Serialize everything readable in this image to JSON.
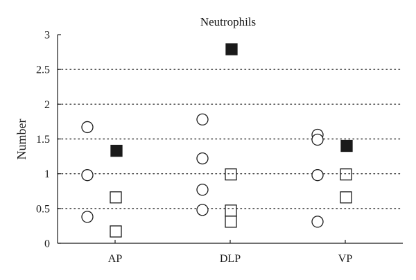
{
  "chart_data": {
    "type": "scatter",
    "title": "Neutrophils",
    "xlabel": "",
    "ylabel": "Number",
    "categories": [
      "AP",
      "DLP",
      "VP"
    ],
    "ylim": [
      0,
      3
    ],
    "yticks": [
      0,
      0.5,
      1,
      1.5,
      2,
      2.5,
      3
    ],
    "ytick_labels": [
      "0",
      "0.5",
      "1",
      "1.5",
      "2",
      "2.5",
      "3"
    ],
    "grid": "horizontal dotted at 0.5 steps",
    "legend": "none",
    "series": [
      {
        "marker": "open-circle",
        "points": [
          {
            "category": "AP",
            "y": 1.67
          },
          {
            "category": "AP",
            "y": 0.98
          },
          {
            "category": "AP",
            "y": 0.38
          },
          {
            "category": "DLP",
            "y": 1.78
          },
          {
            "category": "DLP",
            "y": 1.22
          },
          {
            "category": "DLP",
            "y": 0.77
          },
          {
            "category": "DLP",
            "y": 0.48
          },
          {
            "category": "VP",
            "y": 1.56
          },
          {
            "category": "VP",
            "y": 1.49
          },
          {
            "category": "VP",
            "y": 0.98
          },
          {
            "category": "VP",
            "y": 0.31
          }
        ]
      },
      {
        "marker": "open-square",
        "points": [
          {
            "category": "AP",
            "y": 0.66
          },
          {
            "category": "AP",
            "y": 0.17
          },
          {
            "category": "DLP",
            "y": 0.99
          },
          {
            "category": "DLP",
            "y": 0.47
          },
          {
            "category": "DLP",
            "y": 0.31
          },
          {
            "category": "VP",
            "y": 0.99
          },
          {
            "category": "VP",
            "y": 0.66
          }
        ]
      },
      {
        "marker": "filled-square",
        "points": [
          {
            "category": "AP",
            "y": 1.33
          },
          {
            "category": "DLP",
            "y": 2.79
          },
          {
            "category": "VP",
            "y": 1.4
          }
        ]
      }
    ],
    "colors": {
      "marker_stroke": "#1a1a1a",
      "filled_marker": "#1a1a1a",
      "axis": "#1a1a1a",
      "grid": "#333333"
    }
  }
}
